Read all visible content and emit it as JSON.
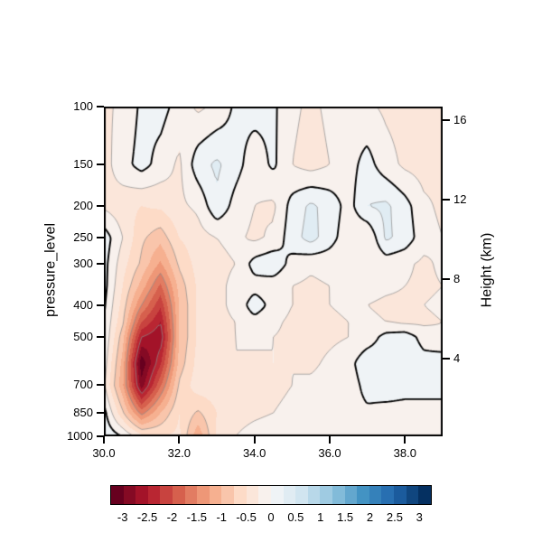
{
  "figure": {
    "background": "#ffffff",
    "frame_color": "#000000"
  },
  "chart_data": {
    "type": "heatmap",
    "subtype": "filled-contour-cross-section",
    "title": "",
    "xlabel": "",
    "ylabel": "pressure_level",
    "y2label": "Height (km)",
    "x_range": [
      30.0,
      39.0
    ],
    "x_ticks": [
      30.0,
      32.0,
      34.0,
      36.0,
      38.0
    ],
    "x_tick_labels": [
      "30.0",
      "32.0",
      "34.0",
      "36.0",
      "38.0"
    ],
    "y_ticks": [
      100,
      150,
      200,
      250,
      300,
      400,
      500,
      700,
      850,
      1000
    ],
    "y_tick_labels": [
      "100",
      "150",
      "200",
      "250",
      "300",
      "400",
      "500",
      "700",
      "850",
      "1000"
    ],
    "y_scale": "log-pressure",
    "height_ticks_km": [
      4,
      8,
      12,
      16
    ],
    "height_tick_labels": [
      "4",
      "8",
      "12",
      "16"
    ],
    "fill_levels": {
      "min": -3.25,
      "step": 0.25,
      "count": 26
    },
    "contour_thin_levels": [
      -2.5,
      -1.5,
      -0.75,
      -0.25,
      0.25
    ],
    "contour_thick_level": 0,
    "contour_thin_color": "#8b8b8b",
    "contour_thick_color": "#000000",
    "x": [
      30.0,
      30.5,
      31.0,
      31.5,
      32.0,
      32.5,
      33.0,
      33.5,
      34.0,
      34.5,
      35.0,
      35.5,
      36.0,
      36.5,
      37.0,
      37.5,
      38.0,
      38.5,
      39.0
    ],
    "pressure_levels": [
      100,
      150,
      200,
      250,
      300,
      350,
      400,
      450,
      500,
      600,
      700,
      850,
      1000
    ],
    "values": [
      [
        -0.3,
        -0.2,
        0.05,
        0.1,
        -0.1,
        -0.3,
        -0.2,
        0.05,
        0.1,
        0.05,
        -0.2,
        -0.3,
        -0.2,
        -0.1,
        -0.2,
        -0.3,
        -0.35,
        -0.3,
        -0.25
      ],
      [
        -0.35,
        -0.1,
        0.1,
        -0.1,
        -0.3,
        0.15,
        0.3,
        0.1,
        -0.15,
        0.05,
        -0.25,
        -0.35,
        -0.25,
        -0.1,
        0.1,
        -0.15,
        -0.3,
        -0.35,
        -0.3
      ],
      [
        -0.3,
        -0.4,
        -0.5,
        -0.45,
        -0.3,
        -0.2,
        0.2,
        -0.1,
        -0.25,
        -0.3,
        0.1,
        0.3,
        0.15,
        -0.1,
        0.25,
        0.3,
        0.1,
        -0.2,
        -0.3
      ],
      [
        0.15,
        -0.25,
        -0.7,
        -0.9,
        -0.5,
        -0.35,
        -0.25,
        -0.2,
        -0.3,
        -0.2,
        0.15,
        0.35,
        0.1,
        -0.15,
        -0.25,
        0.3,
        0.15,
        -0.15,
        -0.25
      ],
      [
        0.1,
        -0.4,
        -0.8,
        -1.3,
        -0.7,
        -0.4,
        -0.3,
        -0.25,
        0.1,
        0.2,
        -0.1,
        -0.2,
        -0.15,
        -0.2,
        -0.25,
        -0.15,
        -0.2,
        -0.3,
        -0.2
      ],
      [
        0.1,
        -0.5,
        -1.1,
        -1.8,
        -0.9,
        -0.45,
        -0.3,
        -0.2,
        -0.1,
        -0.15,
        -0.25,
        -0.3,
        -0.25,
        -0.15,
        -0.15,
        -0.2,
        -0.25,
        -0.3,
        -0.25
      ],
      [
        0.05,
        -0.6,
        -1.5,
        -2.2,
        -1.0,
        -0.45,
        -0.3,
        -0.2,
        0.15,
        -0.1,
        -0.25,
        -0.3,
        -0.25,
        -0.2,
        -0.25,
        -0.3,
        -0.3,
        -0.25,
        -0.2
      ],
      [
        0.0,
        -0.7,
        -2.0,
        -2.5,
        -1.0,
        -0.45,
        -0.3,
        -0.25,
        -0.1,
        -0.2,
        -0.3,
        -0.35,
        -0.3,
        -0.25,
        -0.2,
        -0.25,
        -0.3,
        -0.3,
        -0.25
      ],
      [
        0.0,
        -0.9,
        -2.5,
        -2.7,
        -1.0,
        -0.45,
        -0.3,
        -0.25,
        -0.2,
        -0.25,
        -0.3,
        -0.35,
        -0.3,
        -0.25,
        -0.15,
        0.1,
        0.15,
        -0.1,
        -0.2
      ],
      [
        -0.1,
        -1.1,
        -3.2,
        -2.3,
        -0.9,
        -0.4,
        -0.3,
        -0.25,
        -0.3,
        -0.25,
        -0.25,
        -0.3,
        -0.2,
        -0.1,
        0.2,
        0.15,
        0.2,
        0.1,
        0.15
      ],
      [
        -0.2,
        -1.2,
        -2.9,
        -1.8,
        -0.7,
        -0.35,
        -0.35,
        -0.4,
        -0.35,
        -0.3,
        -0.25,
        -0.2,
        -0.15,
        -0.15,
        0.1,
        0.15,
        0.1,
        0.05,
        0.1
      ],
      [
        0.1,
        -0.7,
        -1.6,
        -1.0,
        -0.5,
        -0.8,
        -0.5,
        -0.35,
        -0.3,
        -0.25,
        -0.2,
        -0.15,
        -0.15,
        -0.1,
        -0.05,
        -0.1,
        -0.1,
        -0.05,
        -0.1
      ],
      [
        0.2,
        0.0,
        -0.4,
        -0.5,
        -0.45,
        -1.2,
        -0.45,
        -0.25,
        -0.15,
        -0.1,
        -0.1,
        -0.05,
        -0.1,
        -0.05,
        0.0,
        -0.05,
        -0.1,
        0.0,
        -0.05
      ]
    ]
  },
  "colorbar": {
    "tick_values": [
      -3,
      -2.5,
      -2,
      -1.5,
      -1,
      -0.5,
      0,
      0.5,
      1,
      1.5,
      2,
      2.5,
      3
    ],
    "tick_labels": [
      "-3",
      "-2.5",
      "-2",
      "-1.5",
      "-1",
      "-0.5",
      "0",
      "0.5",
      "1",
      "1.5",
      "2",
      "2.5",
      "3"
    ],
    "value_min": -3.25,
    "value_max": 3.25,
    "colors": [
      "#67001f",
      "#850a24",
      "#a31329",
      "#b92632",
      "#c8433f",
      "#d6604d",
      "#e27c62",
      "#ee9777",
      "#f6b090",
      "#f9c5ab",
      "#fddbc7",
      "#fbe6da",
      "#f8f1ed",
      "#eff3f6",
      "#e0ecf3",
      "#d1e5f0",
      "#b8d8e9",
      "#9fcbe2",
      "#82bbd9",
      "#63a7ce",
      "#4393c3",
      "#3581ba",
      "#286fb1",
      "#1b5b9d",
      "#10467f",
      "#053061"
    ]
  }
}
